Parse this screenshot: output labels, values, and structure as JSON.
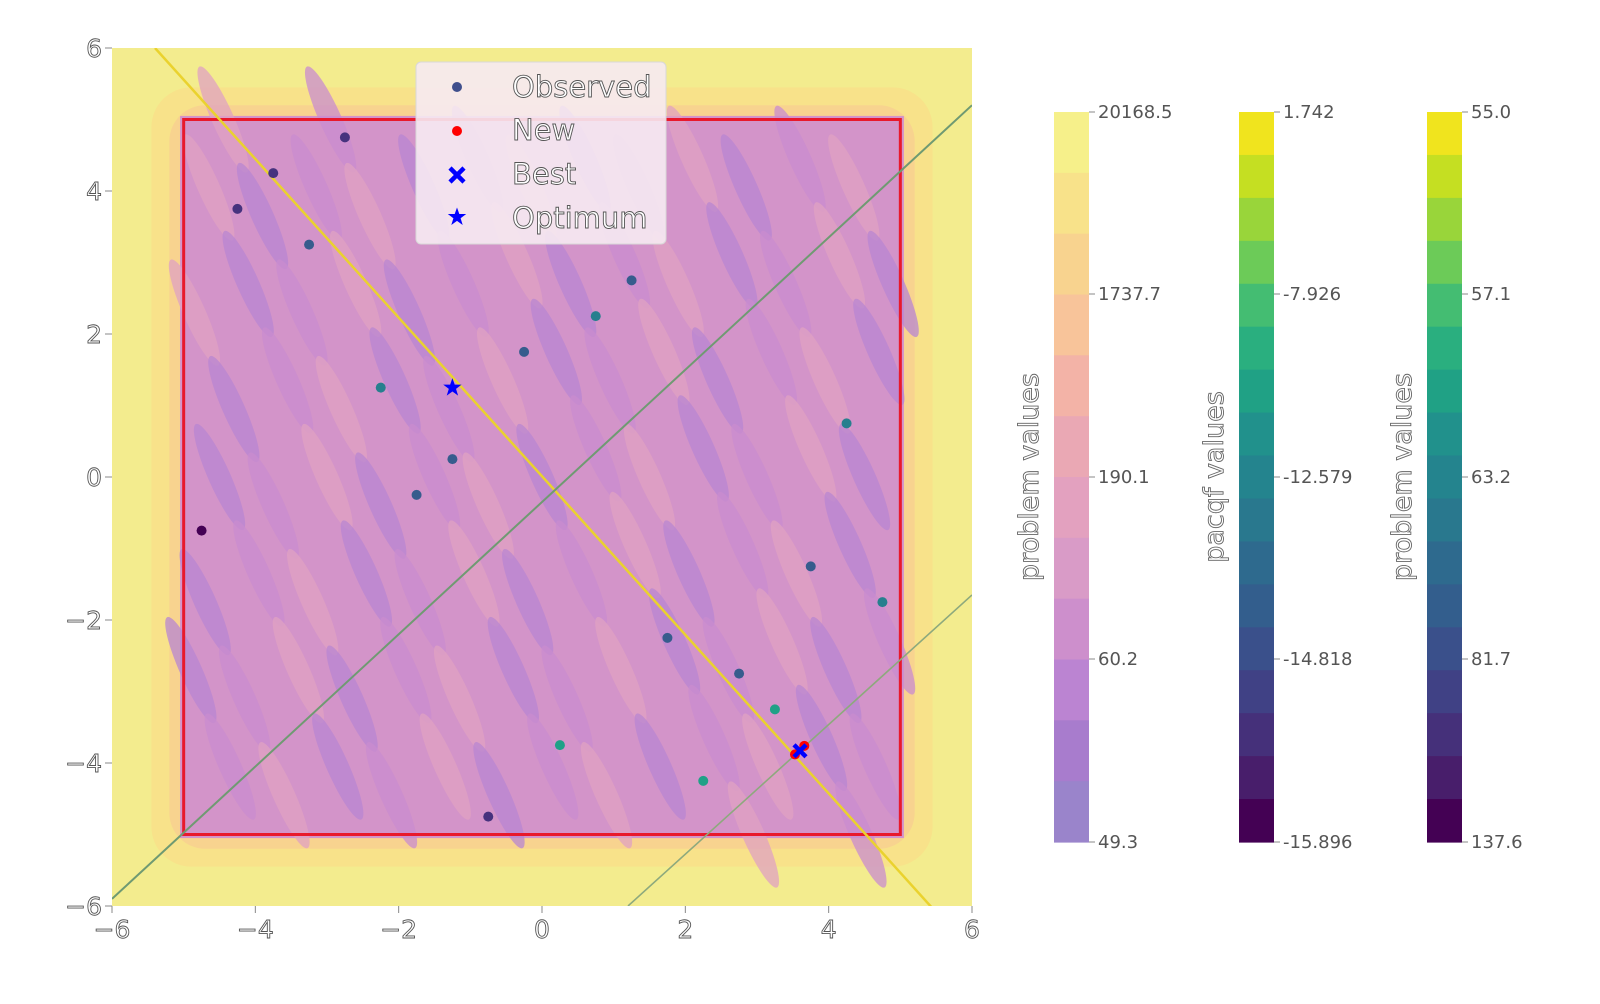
{
  "chart_data": {
    "type": "contour-scatter",
    "xlim": [
      -6,
      6
    ],
    "ylim": [
      -6,
      6
    ],
    "x_ticks": [
      "−6",
      "−4",
      "−2",
      "0",
      "2",
      "4",
      "6"
    ],
    "y_ticks": [
      "−6",
      "−4",
      "−2",
      "0",
      "2",
      "4",
      "6"
    ],
    "x_tick_values": [
      -6,
      -4,
      -2,
      0,
      2,
      4,
      6
    ],
    "y_tick_values": [
      -6,
      -4,
      -2,
      0,
      2,
      4,
      6
    ],
    "bounds": {
      "x": [
        -5,
        5
      ],
      "y": [
        -5,
        5
      ],
      "color": "#e8192c"
    },
    "background_color": "#f3ec8e",
    "grid": false,
    "legend": {
      "position": "top-center",
      "entries": [
        {
          "label": "Observed",
          "marker": "circle",
          "color": "#3f4f8c"
        },
        {
          "label": "New",
          "marker": "circle",
          "color": "#ff0000"
        },
        {
          "label": "Best",
          "marker": "x",
          "color": "#0000ff"
        },
        {
          "label": "Optimum",
          "marker": "star",
          "color": "#0000ff"
        }
      ]
    },
    "observed": [
      {
        "x": -4.75,
        "y": -0.75,
        "c": 0.95
      },
      {
        "x": -4.25,
        "y": 3.75,
        "c": 0.9
      },
      {
        "x": -3.75,
        "y": 4.25,
        "c": 0.85
      },
      {
        "x": -3.25,
        "y": 3.25,
        "c": 0.7
      },
      {
        "x": -2.75,
        "y": 4.75,
        "c": 0.92
      },
      {
        "x": -2.25,
        "y": 1.25,
        "c": 0.55
      },
      {
        "x": -1.75,
        "y": -0.25,
        "c": 0.72
      },
      {
        "x": -1.25,
        "y": 0.25,
        "c": 0.72
      },
      {
        "x": -0.75,
        "y": -4.75,
        "c": 0.85
      },
      {
        "x": -0.25,
        "y": 1.75,
        "c": 0.75
      },
      {
        "x": 0.25,
        "y": -3.75,
        "c": 0.5
      },
      {
        "x": 0.75,
        "y": 2.25,
        "c": 0.58
      },
      {
        "x": 1.25,
        "y": 2.75,
        "c": 0.68
      },
      {
        "x": 1.75,
        "y": -2.25,
        "c": 0.7
      },
      {
        "x": 2.25,
        "y": -4.25,
        "c": 0.5
      },
      {
        "x": 2.75,
        "y": -2.75,
        "c": 0.65
      },
      {
        "x": 3.25,
        "y": -3.25,
        "c": 0.45
      },
      {
        "x": 3.75,
        "y": -1.25,
        "c": 0.68
      },
      {
        "x": 4.25,
        "y": 0.75,
        "c": 0.6
      },
      {
        "x": 4.75,
        "y": -1.75,
        "c": 0.55
      }
    ],
    "new": [
      {
        "x": 3.53,
        "y": -3.88
      },
      {
        "x": 3.66,
        "y": -3.76
      }
    ],
    "best": {
      "x": 3.6,
      "y": -3.83
    },
    "optimum": {
      "x": -1.25,
      "y": 1.25
    },
    "lines": [
      {
        "name": "",
        "x": [
          -5.4,
          5.6
        ],
        "y": [
          6,
          -6.2
        ],
        "color": "#ead22e",
        "width": 2.5
      },
      {
        "name": "",
        "x": [
          -6,
          6
        ],
        "y": [
          -5.9,
          5.2
        ],
        "color": "#6f9a72",
        "width": 2
      },
      {
        "name": "",
        "x": [
          1.2,
          6
        ],
        "y": [
          -6,
          -1.65
        ],
        "color": "#8da97d",
        "width": 1.6
      }
    ],
    "colorbars": [
      {
        "title": "problem values",
        "ticks": [
          "20168.5",
          "1737.7",
          "190.1",
          "60.2",
          "49.3"
        ],
        "tick_values": [
          20168.5,
          1737.7,
          190.1,
          60.2,
          49.3
        ],
        "colors": [
          "#f6f08a",
          "#f8e28a",
          "#f8d38f",
          "#f8c49a",
          "#f3b3a7",
          "#eaa8b4",
          "#e3a1bf",
          "#d99bc7",
          "#cd8fcc",
          "#bb84d2",
          "#a87ccd",
          "#9a84cb"
        ]
      },
      {
        "title": "pacqf values",
        "ticks": [
          "1.742",
          "-7.926",
          "-12.579",
          "-14.818",
          "-15.896"
        ],
        "tick_values": [
          1.742,
          -7.926,
          -12.579,
          -14.818,
          -15.896
        ],
        "colors": [
          "#f0e41e",
          "#c5df22",
          "#99d53a",
          "#6ccb58",
          "#44bd72",
          "#2aaf7f",
          "#20a185",
          "#21918c",
          "#24848e",
          "#29788e",
          "#2e6a8e",
          "#335e8d",
          "#3a508b",
          "#404185",
          "#45307a",
          "#481e6b",
          "#440154"
        ]
      },
      {
        "title": "problem values",
        "ticks": [
          "55.0",
          "57.1",
          "63.2",
          "81.7",
          "137.6"
        ],
        "tick_values": [
          55.0,
          57.1,
          63.2,
          81.7,
          137.6
        ],
        "colors": [
          "#f0e41e",
          "#c5df22",
          "#99d53a",
          "#6ccb58",
          "#44bd72",
          "#2aaf7f",
          "#20a185",
          "#21918c",
          "#24848e",
          "#29788e",
          "#2e6a8e",
          "#335e8d",
          "#3a508b",
          "#404185",
          "#45307a",
          "#481e6b",
          "#440154"
        ]
      }
    ]
  }
}
